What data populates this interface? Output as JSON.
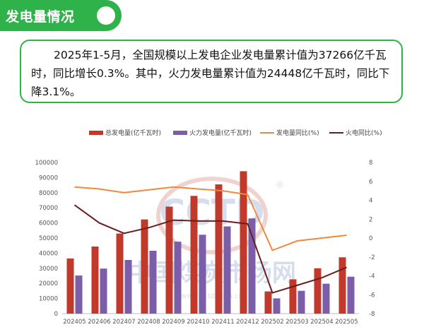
{
  "header": {
    "title": "发电量情况"
  },
  "summary": {
    "text": "2025年1-5月，全国规模以上发电企业发电量累计值为37266亿千瓦时，同比增长0.3%。其中，火力发电量累计值为24448亿千瓦时，同比下降3.1%。"
  },
  "watermark": {
    "logo": "CCTD",
    "registered": "®",
    "name": "中国煤炭市场网",
    "url": "www.cctd.com.cn"
  },
  "colors": {
    "accent": "#2fb24a",
    "total": "#c0392b",
    "thermal": "#7b5ea7",
    "total_yoy": "#ef8a3c",
    "thermal_yoy": "#6b1d1d"
  },
  "chart_data": {
    "type": "bar",
    "categories": [
      "202405",
      "202406",
      "202407",
      "202408",
      "202409",
      "202410",
      "202411",
      "202412",
      "202502",
      "202503",
      "202504",
      "202505"
    ],
    "series": [
      {
        "name": "总发电量(亿千瓦时)",
        "type": "bar",
        "axis": "left",
        "values": [
          36500,
          44400,
          53000,
          62300,
          70800,
          77900,
          85500,
          94200,
          14700,
          22700,
          30000,
          37266
        ]
      },
      {
        "name": "火力发电量(亿千瓦时)",
        "type": "bar",
        "axis": "left",
        "values": [
          25200,
          29800,
          35500,
          41600,
          47600,
          52200,
          57700,
          63000,
          10100,
          15100,
          19800,
          24448
        ]
      },
      {
        "name": "发电量同比(%)",
        "type": "line",
        "axis": "right",
        "values": [
          5.4,
          5.2,
          4.8,
          5.1,
          5.4,
          5.2,
          5.0,
          4.6,
          -1.3,
          -0.3,
          0.0,
          0.3
        ]
      },
      {
        "name": "火电同比(%)",
        "type": "line",
        "axis": "right",
        "values": [
          3.5,
          1.6,
          0.5,
          1.1,
          1.9,
          1.8,
          1.8,
          1.5,
          -5.8,
          -5.0,
          -4.2,
          -3.1
        ]
      }
    ],
    "ylim_left": [
      0,
      100000
    ],
    "ylim_right": [
      -8,
      8
    ],
    "left_ticks": [
      "0",
      "10000",
      "20000",
      "30000",
      "40000",
      "50000",
      "60000",
      "70000",
      "80000",
      "90000",
      "100000"
    ],
    "right_ticks": [
      "-8",
      "-6",
      "-4",
      "-2",
      "0",
      "2",
      "4",
      "6",
      "8"
    ],
    "legend_position": "top",
    "grid": false
  }
}
